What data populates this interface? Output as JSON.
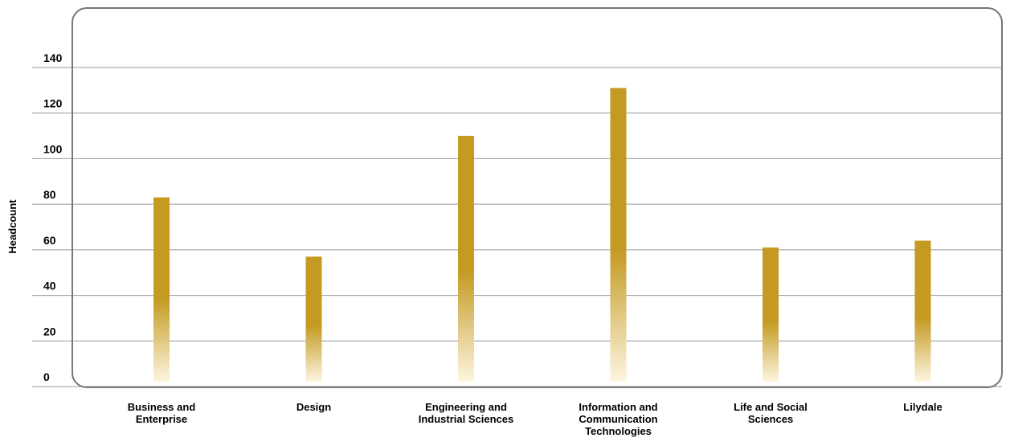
{
  "chart_data": {
    "type": "bar",
    "title": "",
    "xlabel": "",
    "ylabel": "Headcount",
    "ylim": [
      0,
      140
    ],
    "yticks": [
      0,
      20,
      40,
      60,
      80,
      100,
      120,
      140
    ],
    "grid": true,
    "categories": [
      [
        "Business and",
        "Enterprise"
      ],
      [
        "Design"
      ],
      [
        "Engineering and",
        "Industrial Sciences"
      ],
      [
        "Information and",
        "Communication",
        "Technologies"
      ],
      [
        "Life and Social",
        "Sciences"
      ],
      [
        "Lilydale"
      ]
    ],
    "values": [
      83,
      57,
      110,
      131,
      61,
      64
    ],
    "colors": {
      "bar": "#c49a22",
      "bar_fade": "#fdf5e0",
      "frame": "#777777",
      "grid": "#999999"
    }
  }
}
